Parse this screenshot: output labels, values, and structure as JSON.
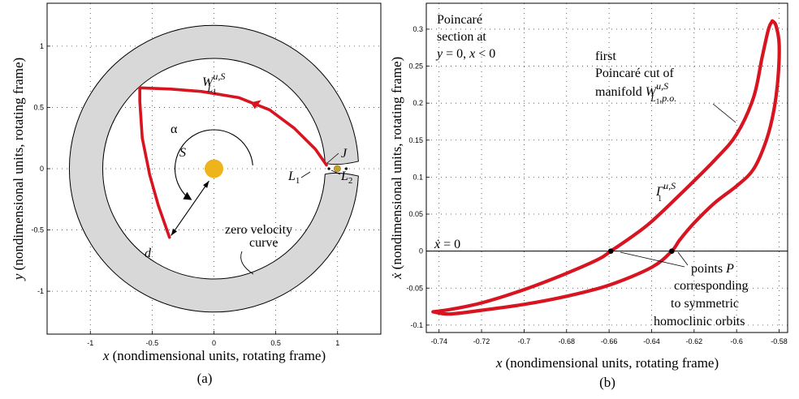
{
  "chart_data": [
    {
      "type": "line",
      "panel": "(a)",
      "xlabel_var": "x",
      "xlabel": "(nondimensional units, rotating frame)",
      "ylabel_var": "y",
      "ylabel": "(nondimensional units, rotating frame)",
      "xlim": [
        -1.35,
        1.35
      ],
      "ylim": [
        -1.35,
        1.35
      ],
      "xticks": [
        -1,
        -0.5,
        0,
        0.5,
        1
      ],
      "yticks": [
        -1,
        -0.5,
        0,
        0.5,
        1
      ],
      "xticklabels": [
        "-1",
        "-0.5",
        "0",
        "0.5",
        "1"
      ],
      "yticklabels": [
        "-1",
        "-0.5",
        "0",
        "0.5",
        "1"
      ],
      "grid": true,
      "zero_velocity_curve": {
        "inner_radius": 0.9,
        "outer_radius": 1.17,
        "neck_x": 1.0,
        "color": "#d8d8d8"
      },
      "manifold": {
        "color": "#d7141f",
        "points": [
          [
            0.91,
            0.03
          ],
          [
            0.82,
            0.16
          ],
          [
            0.65,
            0.33
          ],
          [
            0.45,
            0.48
          ],
          [
            0.2,
            0.58
          ],
          [
            -0.1,
            0.63
          ],
          [
            -0.35,
            0.65
          ],
          [
            -0.6,
            0.66
          ],
          [
            -0.6,
            0.55
          ],
          [
            -0.58,
            0.25
          ],
          [
            -0.52,
            -0.05
          ],
          [
            -0.45,
            -0.3
          ],
          [
            -0.36,
            -0.56
          ]
        ]
      },
      "sun": {
        "x": 0.0,
        "y": 0.0,
        "color": "#efb31c"
      },
      "moon": {
        "x": 0.998,
        "y": 0.0,
        "color": "#c8a02c"
      },
      "labels": {
        "manifold_base": "W",
        "manifold_sup": "u,S",
        "manifold_sub": "L",
        "manifold_subsub": "1",
        "alpha": "α",
        "sun": "S",
        "L1_base": "L",
        "L1_sub": "1",
        "L2_base": "L",
        "L2_sub": "2",
        "J": "J",
        "d": "d",
        "zvc_line1": "zero velocity",
        "zvc_line2": "curve"
      },
      "panel_label": "(a)"
    },
    {
      "type": "line",
      "panel": "(b)",
      "xlabel_var": "x",
      "xlabel": "(nondimensional units, rotating frame)",
      "ylabel_var": "ẋ",
      "ylabel": "(nondimensional units, rotating frame)",
      "xlim": [
        -0.746,
        -0.576
      ],
      "ylim": [
        -0.11,
        0.335
      ],
      "xticks": [
        -0.74,
        -0.72,
        -0.7,
        -0.68,
        -0.66,
        -0.64,
        -0.62,
        -0.6,
        -0.58
      ],
      "yticks": [
        -0.1,
        -0.05,
        0,
        0.05,
        0.1,
        0.15,
        0.2,
        0.25,
        0.3
      ],
      "xticklabels": [
        "-0.74",
        "-0.72",
        "-0.7",
        "-0.68",
        "-0.66",
        "-0.64",
        "-0.62",
        "-0.6",
        "-0.58"
      ],
      "yticklabels": [
        "-0.1",
        "-0.05",
        "0",
        "0.05",
        "0.1",
        "0.15",
        "0.2",
        "0.25",
        "0.3"
      ],
      "grid": true,
      "curve": {
        "color": "#d7141f",
        "outer": [
          [
            -0.7428,
            -0.082
          ],
          [
            -0.735,
            -0.079
          ],
          [
            -0.72,
            -0.07
          ],
          [
            -0.7,
            -0.052
          ],
          [
            -0.68,
            -0.03
          ],
          [
            -0.665,
            -0.011
          ],
          [
            -0.6592,
            0.0
          ],
          [
            -0.65,
            0.018
          ],
          [
            -0.64,
            0.04
          ],
          [
            -0.625,
            0.081
          ],
          [
            -0.61,
            0.124
          ],
          [
            -0.6,
            0.158
          ],
          [
            -0.592,
            0.208
          ],
          [
            -0.588,
            0.262
          ],
          [
            -0.585,
            0.3
          ],
          [
            -0.5832,
            0.311
          ]
        ],
        "inner": [
          [
            -0.5832,
            0.311
          ],
          [
            -0.5815,
            0.305
          ],
          [
            -0.58,
            0.28
          ],
          [
            -0.5805,
            0.235
          ],
          [
            -0.5825,
            0.19
          ],
          [
            -0.586,
            0.15
          ],
          [
            -0.592,
            0.111
          ],
          [
            -0.6,
            0.088
          ],
          [
            -0.61,
            0.066
          ],
          [
            -0.62,
            0.038
          ],
          [
            -0.6268,
            0.015
          ],
          [
            -0.6305,
            0.0
          ],
          [
            -0.64,
            -0.022
          ],
          [
            -0.66,
            -0.046
          ],
          [
            -0.68,
            -0.061
          ],
          [
            -0.7,
            -0.072
          ],
          [
            -0.72,
            -0.08
          ],
          [
            -0.735,
            -0.085
          ],
          [
            -0.7428,
            -0.082
          ]
        ]
      },
      "points_P": [
        [
          -0.6592,
          0.0
        ],
        [
          -0.6305,
          0.0
        ]
      ],
      "labels": {
        "section_line1": "Poincaré",
        "section_line2": "section at",
        "section_line3_a": "y",
        "section_line3_b": " = 0, ",
        "section_line3_c": "x",
        "section_line3_d": " < 0",
        "cut_line1": "first",
        "cut_line2": "Poincaré cut of",
        "cut_line3": "manifold ",
        "cut_base": "W",
        "cut_sup": "u,S",
        "cut_sub": "L",
        "cut_sub1": "1",
        "cut_sub2": ",p.o.",
        "gamma_base": "Γ",
        "gamma_sup": "u,S",
        "gamma_sub": "1",
        "xdot_zero_a": "ẋ",
        "xdot_zero_b": " = 0",
        "points_a": "points ",
        "points_b": "P",
        "points_line2": "corresponding",
        "points_line3": "to symmetric",
        "points_line4": "homoclinic orbits"
      },
      "panel_label": "(b)"
    }
  ]
}
